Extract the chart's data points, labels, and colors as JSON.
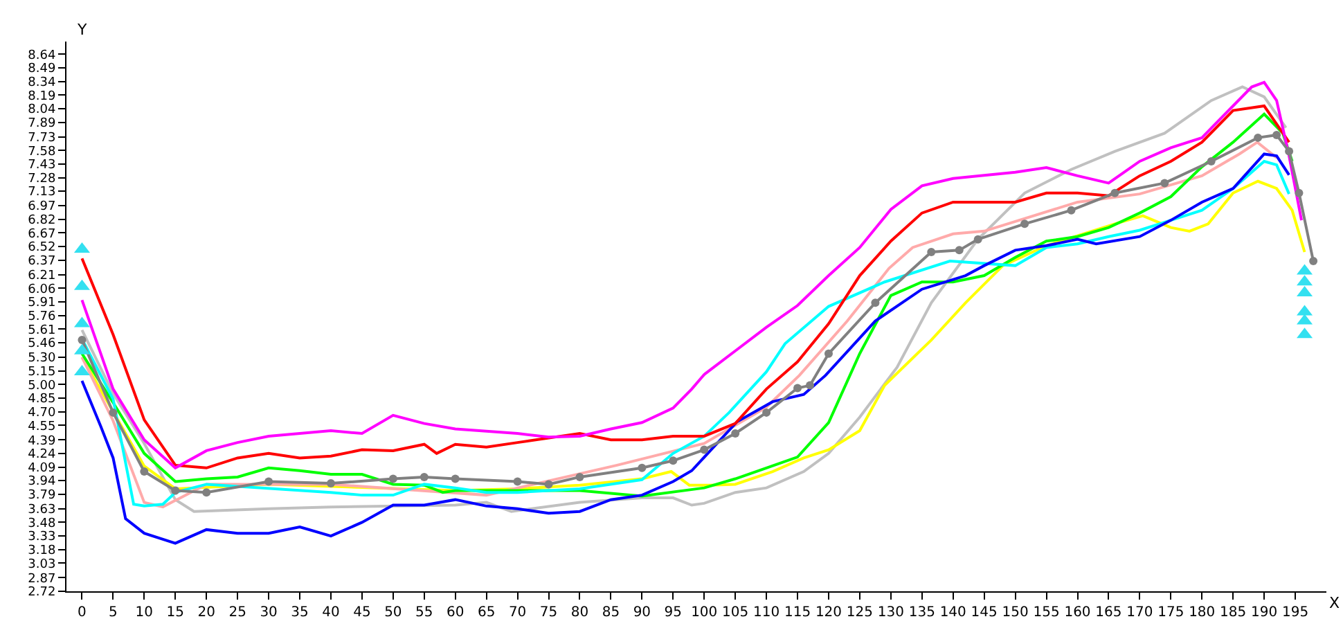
{
  "chart_data": {
    "type": "line",
    "xlabel": "X",
    "ylabel": "Y",
    "marker": "none",
    "xlim": [
      -2.5,
      200
    ],
    "xticks": [
      0,
      5,
      10,
      15,
      20,
      25,
      30,
      35,
      40,
      45,
      50,
      55,
      60,
      65,
      70,
      75,
      80,
      85,
      90,
      95,
      100,
      105,
      110,
      115,
      120,
      125,
      130,
      135,
      140,
      145,
      150,
      155,
      160,
      165,
      170,
      175,
      180,
      185,
      190,
      195
    ],
    "ylim": [
      2.72,
      8.78
    ],
    "yticks": [
      2.72,
      2.87,
      3.03,
      3.18,
      3.33,
      3.48,
      3.63,
      3.79,
      3.94,
      4.09,
      4.24,
      4.39,
      4.55,
      {
        "value": 4.7,
        "label": "4.70"
      },
      4.85,
      {
        "value": 5.0,
        "label": "5.00"
      },
      5.15,
      {
        "value": 5.3,
        "label": "5.30"
      },
      5.46,
      5.61,
      5.76,
      5.91,
      6.06,
      6.21,
      6.37,
      6.52,
      6.67,
      6.82,
      6.97,
      7.13,
      7.28,
      7.43,
      7.58,
      7.73,
      7.89,
      8.04,
      8.19,
      8.34,
      8.49,
      8.64
    ],
    "series": [
      {
        "color": "#c0c0c0",
        "x": [
          0,
          5,
          10,
          15,
          18,
          30,
          40,
          60,
          65,
          69,
          80,
          90,
          95,
          98,
          100,
          105,
          110,
          116,
          120,
          125,
          131,
          136.5,
          144,
          151.5,
          159,
          166,
          174,
          181.5,
          186.5,
          190,
          193.5
        ],
        "values": [
          5.6,
          4.9,
          4.35,
          3.73,
          3.6,
          3.63,
          3.65,
          3.67,
          3.7,
          3.6,
          3.7,
          3.75,
          3.75,
          3.67,
          3.69,
          3.81,
          3.86,
          4.04,
          4.24,
          4.64,
          5.19,
          5.9,
          6.6,
          7.11,
          7.37,
          7.57,
          7.77,
          8.13,
          8.28,
          8.17,
          7.83
        ]
      },
      {
        "color": "#ffff00",
        "x": [
          0,
          5,
          10,
          15,
          30,
          60,
          70,
          80,
          90,
          94.7,
          97.6,
          101,
          105,
          111,
          116,
          120,
          125,
          129,
          136.5,
          142,
          148,
          155,
          166,
          170.5,
          175,
          178,
          181,
          185,
          189,
          192,
          194.5,
          196.5
        ],
        "values": [
          5.3,
          4.7,
          4.1,
          3.85,
          3.9,
          3.83,
          3.85,
          3.89,
          3.96,
          4.04,
          3.89,
          3.89,
          3.9,
          4.04,
          4.19,
          4.28,
          4.49,
          4.99,
          5.49,
          5.9,
          6.31,
          6.53,
          6.77,
          6.86,
          6.73,
          6.69,
          6.77,
          7.11,
          7.24,
          7.16,
          6.92,
          6.46
        ]
      },
      {
        "color": "#ffaaaa",
        "x": [
          0,
          5,
          10,
          13,
          20,
          40,
          65,
          86,
          100,
          110,
          115.3,
          123,
          129.7,
          133.5,
          140,
          145,
          160,
          170,
          180,
          186,
          188.9,
          192
        ],
        "values": [
          5.3,
          4.6,
          3.7,
          3.65,
          3.9,
          3.9,
          3.78,
          4.11,
          4.35,
          4.75,
          5.1,
          5.7,
          6.28,
          6.51,
          6.66,
          6.69,
          7.01,
          7.1,
          7.3,
          7.54,
          7.67,
          7.5
        ]
      },
      {
        "color": "#00ff00",
        "x": [
          0,
          5,
          10,
          15,
          20,
          25,
          30,
          35,
          40,
          45,
          50,
          55,
          58,
          60,
          70,
          80,
          90,
          100,
          105,
          110,
          115,
          120,
          125,
          130,
          135,
          140,
          145,
          150,
          155,
          160,
          165,
          170,
          175,
          180,
          185,
          190,
          193,
          194.5
        ],
        "values": [
          5.34,
          4.8,
          4.24,
          3.93,
          3.96,
          3.98,
          4.08,
          4.05,
          4.01,
          4.01,
          3.9,
          3.89,
          3.81,
          3.83,
          3.83,
          3.83,
          3.77,
          3.86,
          3.96,
          4.08,
          4.2,
          4.58,
          5.34,
          5.98,
          6.13,
          6.13,
          6.2,
          6.4,
          6.58,
          6.63,
          6.73,
          6.89,
          7.07,
          7.4,
          7.67,
          7.98,
          7.77,
          7.46
        ]
      },
      {
        "color": "#00ffff",
        "x": [
          0,
          5,
          8.3,
          10,
          13,
          15,
          20,
          40,
          45,
          50,
          55,
          60,
          65,
          70,
          80,
          90,
          95,
          100,
          104,
          110,
          113,
          120,
          129,
          139.5,
          150,
          155,
          160,
          165,
          170,
          175,
          180,
          185,
          190,
          192,
          194
        ],
        "values": [
          5.5,
          4.84,
          3.68,
          3.66,
          3.68,
          3.81,
          3.9,
          3.81,
          3.78,
          3.78,
          3.9,
          3.86,
          3.81,
          3.81,
          3.85,
          3.95,
          4.24,
          4.43,
          4.69,
          5.14,
          5.45,
          5.86,
          6.13,
          6.36,
          6.31,
          6.51,
          6.55,
          6.63,
          6.7,
          6.81,
          6.92,
          7.16,
          7.46,
          7.42,
          7.1
        ]
      },
      {
        "color": "#0000ff",
        "x": [
          0,
          3,
          5,
          7,
          10,
          15,
          20,
          25,
          30,
          35,
          40,
          45,
          50,
          55,
          60,
          65,
          70,
          75,
          80,
          85,
          90,
          95,
          98,
          105.3,
          111,
          116,
          119.5,
          127.5,
          135,
          142,
          145,
          150,
          155,
          160,
          163,
          170,
          175,
          180,
          185,
          190,
          192,
          194
        ],
        "values": [
          5.04,
          4.54,
          4.19,
          3.52,
          3.36,
          3.25,
          3.4,
          3.36,
          3.36,
          3.43,
          3.33,
          3.48,
          3.67,
          3.67,
          3.73,
          3.66,
          3.63,
          3.58,
          3.6,
          3.73,
          3.78,
          3.93,
          4.05,
          4.59,
          4.81,
          4.89,
          5.1,
          5.7,
          6.05,
          6.2,
          6.31,
          6.48,
          6.53,
          6.6,
          6.55,
          6.63,
          6.81,
          7.01,
          7.16,
          7.54,
          7.52,
          7.31
        ]
      },
      {
        "color": "#ff0000",
        "x": [
          0,
          5,
          10,
          15,
          20,
          25,
          30,
          35,
          40,
          45,
          50,
          55,
          57,
          60,
          65,
          70,
          80,
          85,
          90,
          95,
          100,
          105,
          110,
          115,
          120,
          125,
          130,
          135,
          140,
          145,
          150,
          155,
          160,
          165,
          170,
          175,
          180,
          185,
          190,
          192,
          194
        ],
        "values": [
          6.39,
          5.55,
          4.61,
          4.11,
          4.08,
          4.19,
          4.24,
          4.19,
          4.21,
          4.28,
          4.27,
          4.34,
          4.24,
          4.34,
          4.31,
          4.36,
          4.46,
          4.39,
          4.39,
          4.43,
          4.43,
          4.57,
          4.95,
          5.25,
          5.67,
          6.2,
          6.58,
          6.89,
          7.01,
          7.01,
          7.01,
          7.11,
          7.11,
          7.08,
          7.3,
          7.46,
          7.67,
          8.02,
          8.07,
          7.87,
          7.67
        ]
      },
      {
        "color": "#ff00ff",
        "x": [
          0,
          5,
          10,
          15,
          20,
          25,
          30,
          40,
          45,
          50,
          55,
          60,
          70,
          75,
          80,
          85,
          90,
          95,
          98,
          100,
          105,
          110,
          115,
          120,
          125,
          130,
          135,
          140,
          150,
          155,
          160,
          165,
          170,
          175,
          180,
          185,
          188,
          190,
          192,
          194,
          196
        ],
        "values": [
          5.93,
          4.95,
          4.39,
          4.08,
          4.27,
          4.36,
          4.43,
          4.49,
          4.46,
          4.66,
          4.57,
          4.51,
          4.46,
          4.42,
          4.43,
          4.51,
          4.58,
          4.74,
          4.95,
          5.11,
          5.37,
          5.63,
          5.87,
          6.2,
          6.51,
          6.93,
          7.19,
          7.27,
          7.34,
          7.39,
          7.3,
          7.22,
          7.46,
          7.61,
          7.72,
          8.07,
          8.28,
          8.33,
          8.13,
          7.52,
          6.81
        ]
      },
      {
        "type": "line",
        "marker": "circle",
        "color": "#808080",
        "x": [
          0,
          5,
          10,
          15,
          20,
          30,
          40,
          50,
          55,
          60,
          70,
          75,
          80,
          90,
          95,
          100,
          105,
          110,
          115,
          117,
          120,
          127.5,
          136.5,
          141,
          144,
          151.5,
          159,
          166,
          174,
          181.5,
          189,
          192,
          194,
          195.6,
          197.9
        ],
        "values": [
          5.49,
          4.69,
          4.04,
          3.83,
          3.81,
          3.93,
          3.91,
          3.96,
          3.98,
          3.96,
          3.93,
          3.9,
          3.98,
          4.08,
          4.16,
          4.28,
          4.46,
          4.69,
          4.96,
          4.99,
          5.34,
          5.9,
          6.46,
          6.48,
          6.6,
          6.77,
          6.92,
          7.11,
          7.22,
          7.46,
          7.72,
          7.75,
          7.57,
          7.11,
          6.36
        ]
      },
      {
        "type": "scatter",
        "marker": "triangle",
        "color": "#33e0f0",
        "x": [
          0,
          0,
          0,
          0,
          0,
          196.5,
          196.5,
          196.5,
          196.5,
          196.5,
          196.5
        ],
        "values": [
          6.49,
          6.08,
          5.67,
          5.37,
          5.14,
          6.25,
          6.13,
          6.01,
          5.8,
          5.7,
          5.55
        ]
      }
    ]
  }
}
